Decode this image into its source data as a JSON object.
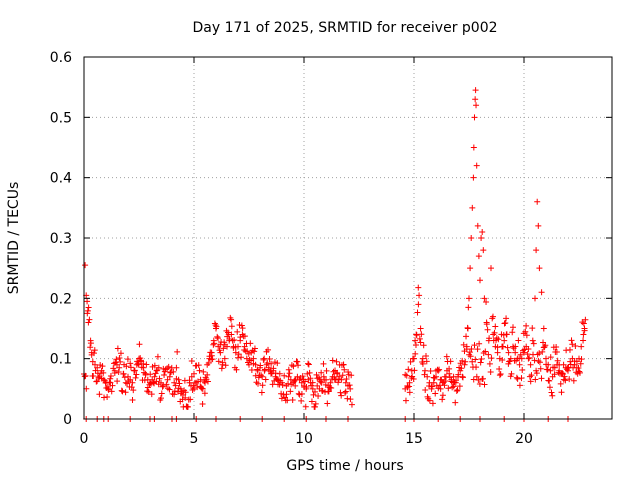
{
  "chart_data": {
    "type": "scatter",
    "title": "Day 171 of 2025, SRMTID for receiver p002",
    "xlabel": "GPS time / hours",
    "ylabel": "SRMTID / TECUs",
    "xlim": [
      0,
      24
    ],
    "ylim": [
      0,
      0.6
    ],
    "xticks": [
      0,
      5,
      10,
      15,
      20
    ],
    "xtick_labels": [
      "0",
      "5",
      "10",
      "15",
      "20"
    ],
    "yticks": [
      0,
      0.1,
      0.2,
      0.3,
      0.4,
      0.5,
      0.6
    ],
    "ytick_labels": [
      "0",
      "0.1",
      "0.2",
      "0.3",
      "0.4",
      "0.5",
      "0.6"
    ],
    "grid": true,
    "marker": "+",
    "color": "#ff0000",
    "data_gap": [
      12.3,
      14.5
    ],
    "segments": [
      {
        "x_start": 0.0,
        "x_end": 12.2,
        "baseline": 0.075,
        "spread": 0.03
      },
      {
        "x_start": 14.6,
        "x_end": 22.8,
        "baseline": 0.09,
        "spread": 0.035
      }
    ],
    "zero_markers_x": [
      0.1,
      0.6,
      0.9,
      1.1,
      2.1,
      3.0,
      3.2,
      4.0,
      4.2,
      5.1,
      6.0,
      7.1,
      8.1,
      9.1,
      10.1,
      11.0,
      12.0,
      14.6,
      15.0,
      16.1,
      17.1,
      18.0,
      19.1,
      20.0,
      21.1,
      22.0
    ],
    "points": [
      [
        0.05,
        0.255
      ],
      [
        0.1,
        0.205
      ],
      [
        0.15,
        0.175
      ],
      [
        0.2,
        0.16
      ],
      [
        0.3,
        0.13
      ],
      [
        0.35,
        0.11
      ],
      [
        0.4,
        0.095
      ],
      [
        0.5,
        0.09
      ],
      [
        0.6,
        0.085
      ],
      [
        0.7,
        0.07
      ],
      [
        0.8,
        0.08
      ],
      [
        0.9,
        0.065
      ],
      [
        1.0,
        0.06
      ],
      [
        1.1,
        0.05
      ],
      [
        1.2,
        0.06
      ],
      [
        1.4,
        0.08
      ],
      [
        1.5,
        0.09
      ],
      [
        1.6,
        0.085
      ],
      [
        1.8,
        0.075
      ],
      [
        1.9,
        0.06
      ],
      [
        2.0,
        0.07
      ],
      [
        2.1,
        0.065
      ],
      [
        2.2,
        0.06
      ],
      [
        2.3,
        0.08
      ],
      [
        2.4,
        0.09
      ],
      [
        2.5,
        0.1
      ],
      [
        2.6,
        0.095
      ],
      [
        2.7,
        0.085
      ],
      [
        2.8,
        0.075
      ],
      [
        2.9,
        0.065
      ],
      [
        3.0,
        0.06
      ],
      [
        3.1,
        0.065
      ],
      [
        3.2,
        0.07
      ],
      [
        3.3,
        0.08
      ],
      [
        3.4,
        0.085
      ],
      [
        3.5,
        0.06
      ],
      [
        3.6,
        0.055
      ],
      [
        3.8,
        0.065
      ],
      [
        3.9,
        0.07
      ],
      [
        4.1,
        0.06
      ],
      [
        4.2,
        0.085
      ],
      [
        4.3,
        0.065
      ],
      [
        4.4,
        0.05
      ],
      [
        4.5,
        0.04
      ],
      [
        4.6,
        0.035
      ],
      [
        4.7,
        0.02
      ],
      [
        4.8,
        0.06
      ],
      [
        4.9,
        0.07
      ],
      [
        5.0,
        0.075
      ],
      [
        5.1,
        0.06
      ],
      [
        5.3,
        0.065
      ],
      [
        5.4,
        0.05
      ],
      [
        5.5,
        0.06
      ],
      [
        5.6,
        0.09
      ],
      [
        5.7,
        0.1
      ],
      [
        5.8,
        0.11
      ],
      [
        5.9,
        0.13
      ],
      [
        6.0,
        0.15
      ],
      [
        6.1,
        0.12
      ],
      [
        6.2,
        0.11
      ],
      [
        6.3,
        0.09
      ],
      [
        6.4,
        0.1
      ],
      [
        6.5,
        0.12
      ],
      [
        6.6,
        0.13
      ],
      [
        6.7,
        0.14
      ],
      [
        6.8,
        0.12
      ],
      [
        6.9,
        0.11
      ],
      [
        7.0,
        0.12
      ],
      [
        7.1,
        0.13
      ],
      [
        7.2,
        0.14
      ],
      [
        7.3,
        0.12
      ],
      [
        7.4,
        0.1
      ],
      [
        7.5,
        0.09
      ],
      [
        7.6,
        0.11
      ],
      [
        7.7,
        0.1
      ],
      [
        7.8,
        0.09
      ],
      [
        7.9,
        0.08
      ],
      [
        8.0,
        0.085
      ],
      [
        8.1,
        0.07
      ],
      [
        8.2,
        0.08
      ],
      [
        8.3,
        0.09
      ],
      [
        8.4,
        0.085
      ],
      [
        8.5,
        0.075
      ],
      [
        8.6,
        0.08
      ],
      [
        8.7,
        0.07
      ],
      [
        8.8,
        0.065
      ],
      [
        8.9,
        0.075
      ],
      [
        9.0,
        0.06
      ],
      [
        9.2,
        0.055
      ],
      [
        9.3,
        0.07
      ],
      [
        9.4,
        0.065
      ],
      [
        9.5,
        0.06
      ],
      [
        9.6,
        0.055
      ],
      [
        9.7,
        0.07
      ],
      [
        9.8,
        0.065
      ],
      [
        9.9,
        0.06
      ],
      [
        10.0,
        0.055
      ],
      [
        10.1,
        0.05
      ],
      [
        10.2,
        0.065
      ],
      [
        10.3,
        0.06
      ],
      [
        10.4,
        0.05
      ],
      [
        10.5,
        0.045
      ],
      [
        10.6,
        0.055
      ],
      [
        10.7,
        0.05
      ],
      [
        10.8,
        0.06
      ],
      [
        10.9,
        0.07
      ],
      [
        11.0,
        0.065
      ],
      [
        11.1,
        0.055
      ],
      [
        11.2,
        0.06
      ],
      [
        11.3,
        0.07
      ],
      [
        11.4,
        0.065
      ],
      [
        11.5,
        0.075
      ],
      [
        11.6,
        0.07
      ],
      [
        11.7,
        0.065
      ],
      [
        11.8,
        0.09
      ],
      [
        11.9,
        0.06
      ],
      [
        12.0,
        0.055
      ],
      [
        12.1,
        0.05
      ],
      [
        14.6,
        0.05
      ],
      [
        14.7,
        0.055
      ],
      [
        14.8,
        0.06
      ],
      [
        14.9,
        0.08
      ],
      [
        15.0,
        0.1
      ],
      [
        15.05,
        0.13
      ],
      [
        15.1,
        0.14
      ],
      [
        15.2,
        0.19
      ],
      [
        15.3,
        0.15
      ],
      [
        15.4,
        0.1
      ],
      [
        15.5,
        0.08
      ],
      [
        15.6,
        0.07
      ],
      [
        15.7,
        0.06
      ],
      [
        15.8,
        0.05
      ],
      [
        15.9,
        0.06
      ],
      [
        16.0,
        0.07
      ],
      [
        16.1,
        0.08
      ],
      [
        16.2,
        0.065
      ],
      [
        16.3,
        0.06
      ],
      [
        16.4,
        0.07
      ],
      [
        16.5,
        0.08
      ],
      [
        16.6,
        0.075
      ],
      [
        16.7,
        0.065
      ],
      [
        16.8,
        0.07
      ],
      [
        16.9,
        0.06
      ],
      [
        17.0,
        0.07
      ],
      [
        17.1,
        0.08
      ],
      [
        17.2,
        0.07
      ],
      [
        17.3,
        0.09
      ],
      [
        17.4,
        0.12
      ],
      [
        17.45,
        0.15
      ],
      [
        17.5,
        0.2
      ],
      [
        17.55,
        0.25
      ],
      [
        17.6,
        0.3
      ],
      [
        17.65,
        0.35
      ],
      [
        17.7,
        0.4
      ],
      [
        17.72,
        0.45
      ],
      [
        17.75,
        0.5
      ],
      [
        17.78,
        0.53
      ],
      [
        17.8,
        0.545
      ],
      [
        17.82,
        0.52
      ],
      [
        17.85,
        0.42
      ],
      [
        17.9,
        0.32
      ],
      [
        17.95,
        0.27
      ],
      [
        18.0,
        0.23
      ],
      [
        18.05,
        0.3
      ],
      [
        18.1,
        0.31
      ],
      [
        18.15,
        0.28
      ],
      [
        18.2,
        0.2
      ],
      [
        18.3,
        0.16
      ],
      [
        18.4,
        0.13
      ],
      [
        18.5,
        0.25
      ],
      [
        18.6,
        0.14
      ],
      [
        18.7,
        0.12
      ],
      [
        18.8,
        0.11
      ],
      [
        18.9,
        0.1
      ],
      [
        19.0,
        0.12
      ],
      [
        19.1,
        0.13
      ],
      [
        19.2,
        0.14
      ],
      [
        19.3,
        0.11
      ],
      [
        19.4,
        0.1
      ],
      [
        19.5,
        0.12
      ],
      [
        19.6,
        0.11
      ],
      [
        19.7,
        0.1
      ],
      [
        19.8,
        0.09
      ],
      [
        19.9,
        0.1
      ],
      [
        20.0,
        0.11
      ],
      [
        20.1,
        0.12
      ],
      [
        20.2,
        0.1
      ],
      [
        20.3,
        0.09
      ],
      [
        20.4,
        0.13
      ],
      [
        20.5,
        0.2
      ],
      [
        20.55,
        0.28
      ],
      [
        20.6,
        0.36
      ],
      [
        20.65,
        0.32
      ],
      [
        20.7,
        0.25
      ],
      [
        20.8,
        0.21
      ],
      [
        20.9,
        0.15
      ],
      [
        21.0,
        0.1
      ],
      [
        21.1,
        0.09
      ],
      [
        21.2,
        0.08
      ],
      [
        21.3,
        0.07
      ],
      [
        21.4,
        0.085
      ],
      [
        21.5,
        0.09
      ],
      [
        21.6,
        0.08
      ],
      [
        21.7,
        0.075
      ],
      [
        21.8,
        0.09
      ],
      [
        21.9,
        0.085
      ],
      [
        22.0,
        0.08
      ],
      [
        22.1,
        0.095
      ],
      [
        22.2,
        0.1
      ],
      [
        22.3,
        0.09
      ],
      [
        22.4,
        0.085
      ],
      [
        22.5,
        0.1
      ],
      [
        22.6,
        0.12
      ],
      [
        22.7,
        0.14
      ],
      [
        22.75,
        0.15
      ]
    ]
  }
}
